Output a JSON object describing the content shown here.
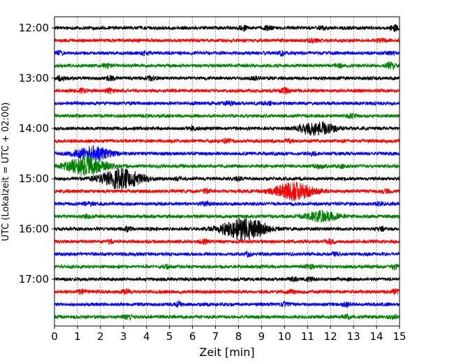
{
  "chart_data": {
    "type": "line",
    "title": "",
    "xlabel": "Zeit  [min]",
    "ylabel": "UTC (Lokalzeit = UTC + 02:00)",
    "xlim": [
      0,
      15
    ],
    "x_ticks": [
      "0",
      "1",
      "2",
      "3",
      "4",
      "5",
      "6",
      "7",
      "8",
      "9",
      "10",
      "11",
      "12",
      "13",
      "14",
      "15"
    ],
    "y_tick_labels": [
      "12:00",
      "13:00",
      "14:00",
      "15:00",
      "16:00",
      "17:00"
    ],
    "grid": "vertical dotted at each minute",
    "trace_interval_minutes": 15,
    "trace_colors": [
      "#000000",
      "#ff0000",
      "#0000ff",
      "#008000"
    ],
    "traces": [
      {
        "start": "12:00",
        "events": [
          {
            "t": 8.2,
            "amp": 0.45
          },
          {
            "t": 9.3,
            "amp": 0.5
          },
          {
            "t": 11.6,
            "amp": 0.4
          },
          {
            "t": 14.8,
            "amp": 0.6
          }
        ]
      },
      {
        "start": "12:15",
        "events": [
          {
            "t": 11.2,
            "amp": 0.5
          },
          {
            "t": 14.2,
            "amp": 0.35
          }
        ]
      },
      {
        "start": "12:30",
        "events": [
          {
            "t": 0.2,
            "amp": 0.35
          },
          {
            "t": 3.9,
            "amp": 0.35
          },
          {
            "t": 9.9,
            "amp": 0.5
          },
          {
            "t": 14.6,
            "amp": 0.3
          }
        ]
      },
      {
        "start": "12:45",
        "events": [
          {
            "t": 2.3,
            "amp": 0.45
          },
          {
            "t": 12.4,
            "amp": 0.35
          },
          {
            "t": 14.6,
            "amp": 0.9
          }
        ]
      },
      {
        "start": "13:00",
        "events": [
          {
            "t": 0.3,
            "amp": 0.6
          },
          {
            "t": 2.4,
            "amp": 0.45
          },
          {
            "t": 4.2,
            "amp": 0.45
          },
          {
            "t": 8.7,
            "amp": 0.35
          }
        ]
      },
      {
        "start": "13:15",
        "events": [
          {
            "t": 1.2,
            "amp": 0.45
          },
          {
            "t": 2.4,
            "amp": 0.45
          },
          {
            "t": 10.0,
            "amp": 0.6
          }
        ]
      },
      {
        "start": "13:30",
        "events": [
          {
            "t": 7.6,
            "amp": 0.4
          },
          {
            "t": 9.3,
            "amp": 0.35
          }
        ]
      },
      {
        "start": "13:45",
        "events": [
          {
            "t": 12.9,
            "amp": 0.4
          }
        ]
      },
      {
        "start": "14:00",
        "events": [
          {
            "t": 6.0,
            "amp": 0.45
          },
          {
            "t": 11.4,
            "amp": 1.6
          }
        ]
      },
      {
        "start": "14:15",
        "events": [
          {
            "t": 7.5,
            "amp": 0.45
          },
          {
            "t": 10.2,
            "amp": 0.4
          }
        ]
      },
      {
        "start": "14:30",
        "events": [
          {
            "t": 1.7,
            "amp": 1.7
          },
          {
            "t": 11.2,
            "amp": 0.5
          }
        ]
      },
      {
        "start": "14:45",
        "events": [
          {
            "t": 1.4,
            "amp": 2.4
          },
          {
            "t": 11.5,
            "amp": 0.5
          },
          {
            "t": 12.5,
            "amp": 0.35
          }
        ]
      },
      {
        "start": "15:00",
        "events": [
          {
            "t": 2.9,
            "amp": 2.6
          },
          {
            "t": 5.3,
            "amp": 0.35
          },
          {
            "t": 8.0,
            "amp": 0.4
          }
        ]
      },
      {
        "start": "15:15",
        "events": [
          {
            "t": 6.6,
            "amp": 0.45
          },
          {
            "t": 10.4,
            "amp": 2.2
          },
          {
            "t": 14.4,
            "amp": 0.35
          }
        ]
      },
      {
        "start": "15:30",
        "events": [
          {
            "t": 1.5,
            "amp": 0.5
          },
          {
            "t": 6.6,
            "amp": 0.45
          },
          {
            "t": 14.1,
            "amp": 0.35
          }
        ]
      },
      {
        "start": "15:45",
        "events": [
          {
            "t": 1.4,
            "amp": 0.35
          },
          {
            "t": 11.6,
            "amp": 1.2
          }
        ]
      },
      {
        "start": "16:00",
        "events": [
          {
            "t": 3.2,
            "amp": 0.5
          },
          {
            "t": 8.2,
            "amp": 2.8
          },
          {
            "t": 9.0,
            "amp": 0.6
          },
          {
            "t": 14.2,
            "amp": 0.4
          }
        ]
      },
      {
        "start": "16:15",
        "events": [
          {
            "t": 2.4,
            "amp": 0.4
          },
          {
            "t": 6.5,
            "amp": 0.45
          },
          {
            "t": 12.0,
            "amp": 0.5
          }
        ]
      },
      {
        "start": "16:30",
        "events": [
          {
            "t": 8.4,
            "amp": 0.45
          },
          {
            "t": 12.2,
            "amp": 0.4
          }
        ]
      },
      {
        "start": "16:45",
        "events": [
          {
            "t": 4.9,
            "amp": 0.35
          },
          {
            "t": 11.1,
            "amp": 0.4
          },
          {
            "t": 14.8,
            "amp": 0.5
          }
        ]
      },
      {
        "start": "17:00",
        "events": [
          {
            "t": 11.1,
            "amp": 0.45
          },
          {
            "t": 10.4,
            "amp": 0.35
          }
        ]
      },
      {
        "start": "17:15",
        "events": [
          {
            "t": 1.2,
            "amp": 0.4
          },
          {
            "t": 3.1,
            "amp": 0.6
          },
          {
            "t": 10.3,
            "amp": 0.45
          },
          {
            "t": 14.8,
            "amp": 0.5
          }
        ]
      },
      {
        "start": "17:30",
        "events": [
          {
            "t": 5.4,
            "amp": 0.45
          },
          {
            "t": 10.0,
            "amp": 0.45
          },
          {
            "t": 12.7,
            "amp": 0.4
          }
        ]
      },
      {
        "start": "17:45",
        "events": [
          {
            "t": 3.2,
            "amp": 0.5
          },
          {
            "t": 12.7,
            "amp": 0.5
          },
          {
            "t": 14.7,
            "amp": 0.35
          }
        ]
      }
    ]
  }
}
